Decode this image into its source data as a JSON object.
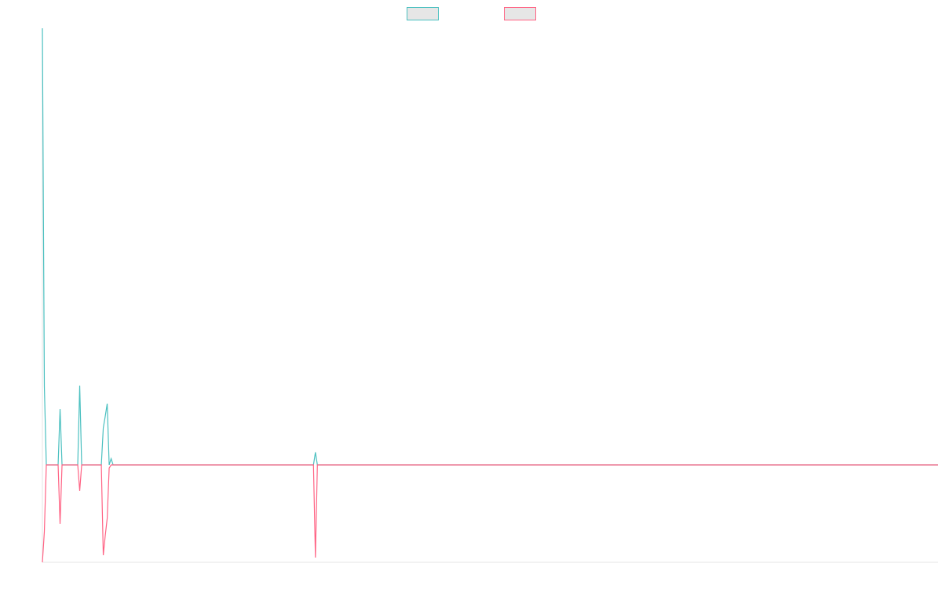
{
  "chart_data": {
    "type": "line",
    "x": [
      0,
      1,
      2,
      8,
      9,
      10,
      18,
      19,
      20,
      30,
      31,
      32,
      33,
      34,
      35,
      36,
      138,
      139,
      140,
      456
    ],
    "series": [
      {
        "color": "#4bc0c0",
        "values": [
          5.56,
          1.0,
          0,
          0,
          0.71,
          0,
          0,
          1.01,
          0,
          0,
          0.47,
          0.62,
          0.78,
          0,
          0.08,
          0,
          0,
          0.16,
          0,
          0
        ]
      },
      {
        "color": "#ff6384",
        "values": [
          -1.24,
          -0.85,
          0,
          0,
          -0.75,
          0,
          0,
          -0.33,
          0,
          0,
          -1.15,
          -0.9,
          -0.68,
          -0.04,
          0,
          0,
          0,
          -1.18,
          0,
          0
        ]
      }
    ],
    "xlim": [
      0,
      456
    ],
    "ylim": [
      -1.24,
      5.56
    ],
    "legend": "top"
  }
}
